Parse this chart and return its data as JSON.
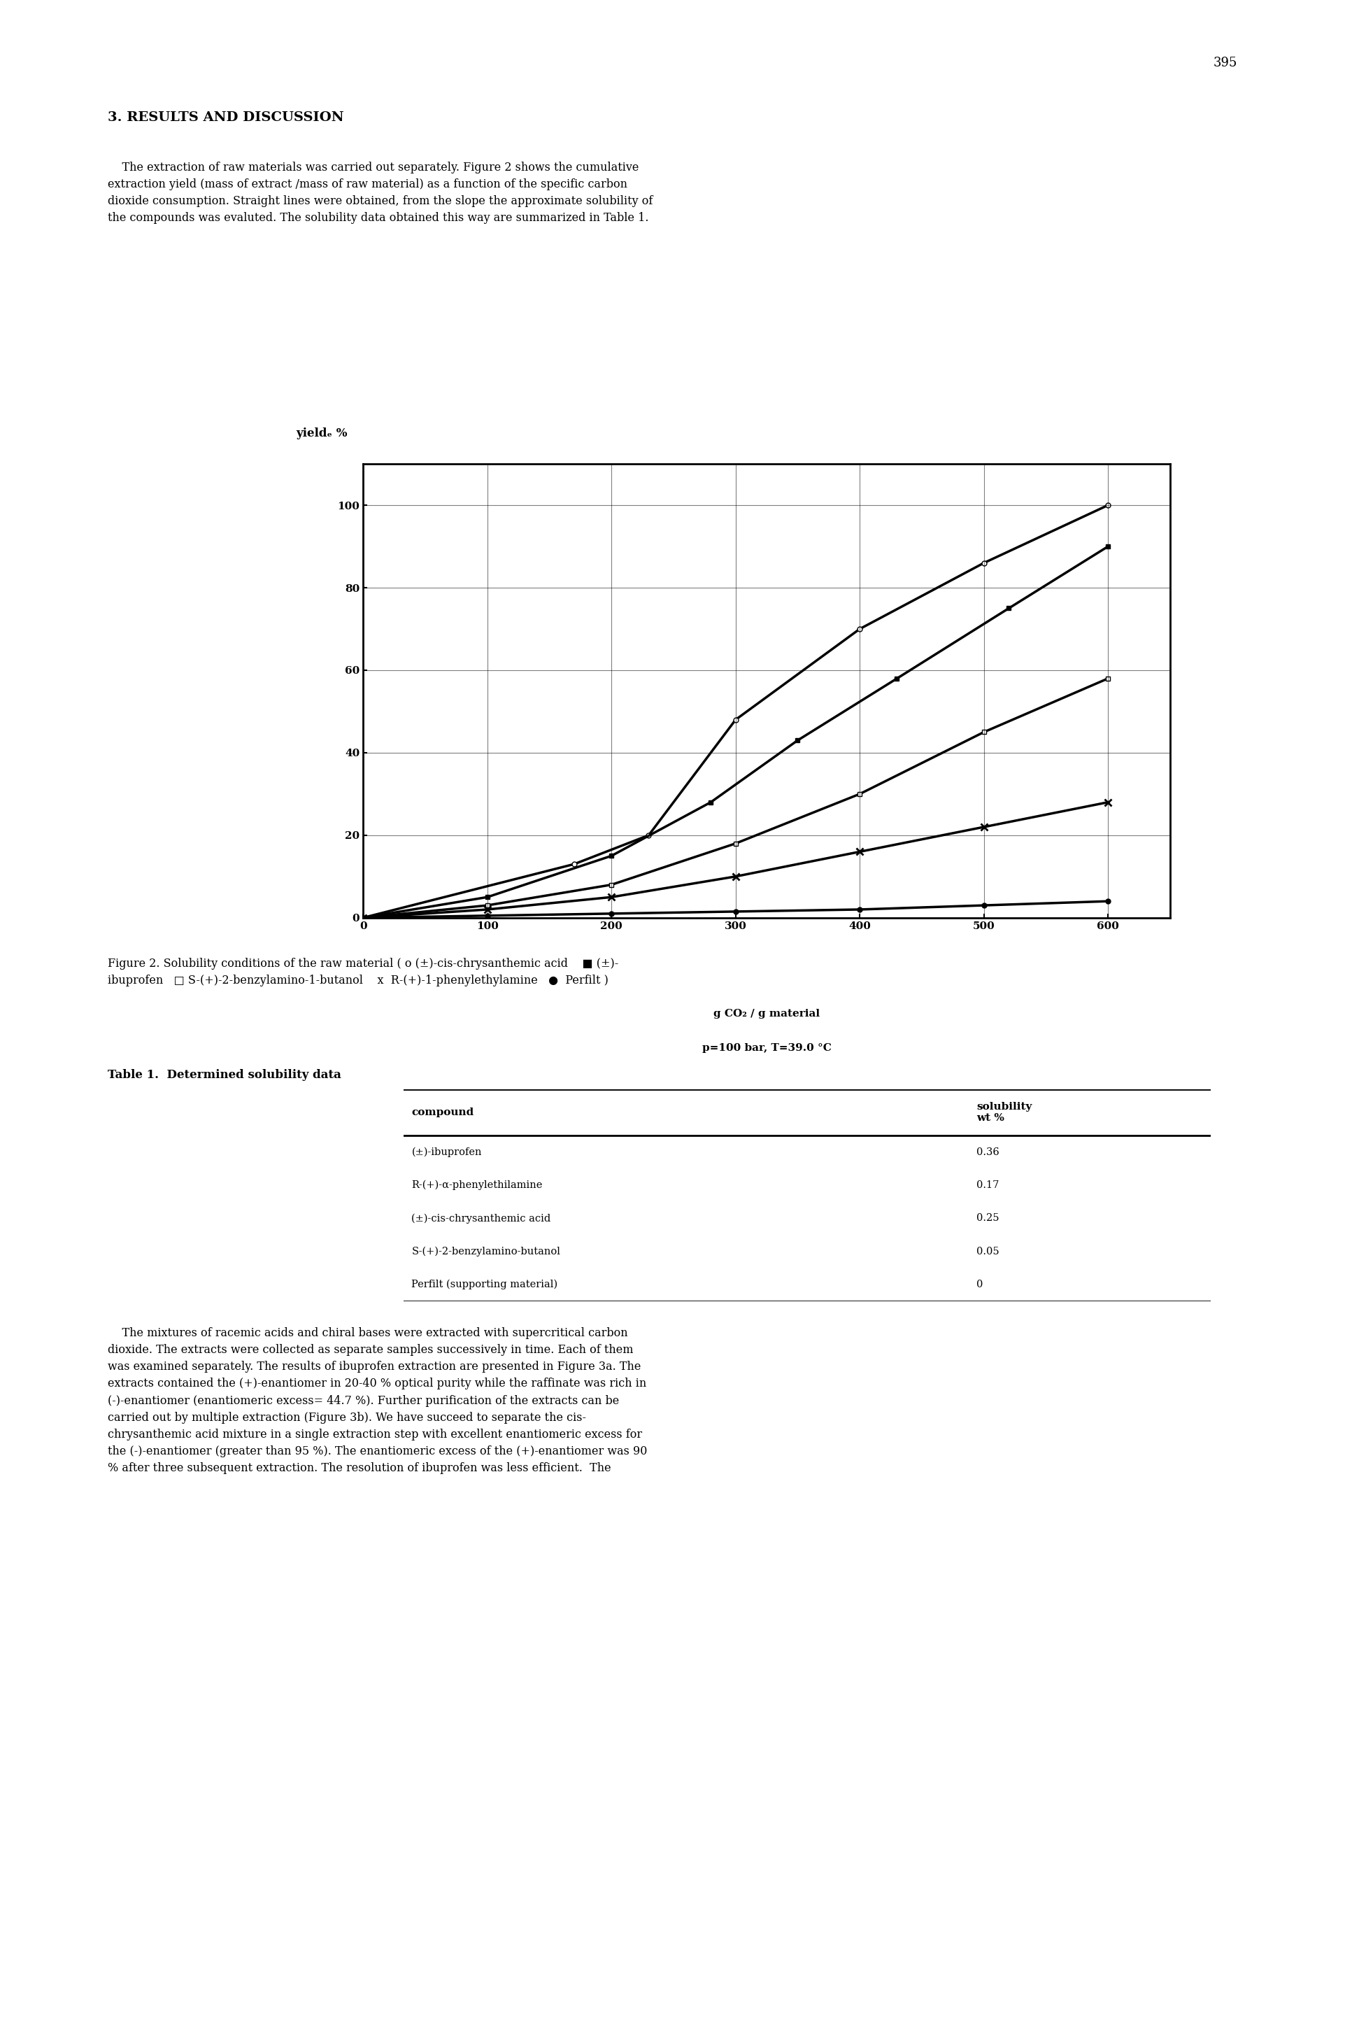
{
  "page_number": "395",
  "section_heading": "3. RESULTS AND DISCUSSION",
  "paragraph1": "    The extraction of raw materials was carried out separately. Figure 2 shows the cumulative\nextraction yield (mass of extract /mass of raw material) as a function of the specific carbon\ndioxide consumption. Straight lines were obtained, from the slope the approximate solubility of\nthe compounds was evaluted. The solubility data obtained this way are summarized in Table 1.",
  "ylabel": "yieldₑ %",
  "xlabel_line1": "g CO₂ / g material",
  "xlabel_line2": "p=100 bar, T=39.0 °C",
  "yticks": [
    0,
    20,
    40,
    60,
    80,
    100
  ],
  "xticks": [
    0,
    100,
    200,
    300,
    400,
    500,
    600
  ],
  "xlim": [
    0,
    650
  ],
  "ylim": [
    0,
    110
  ],
  "series": [
    {
      "label": "(±)-cis-chrysanthemic acid",
      "marker": "o",
      "x": [
        0,
        170,
        230,
        300,
        400,
        500,
        600
      ],
      "y": [
        0,
        13,
        20,
        48,
        70,
        86,
        100
      ],
      "linewidth": 2.5
    },
    {
      "label": "(±)-ibuprofen",
      "marker": "s",
      "x": [
        0,
        100,
        200,
        280,
        350,
        430,
        520,
        600
      ],
      "y": [
        0,
        5,
        15,
        28,
        43,
        58,
        75,
        90
      ],
      "linewidth": 2.5
    },
    {
      "label": "S-(+)-2-benzylamino-1-butanol",
      "marker": "D",
      "x": [
        0,
        100,
        200,
        300,
        400,
        500,
        600
      ],
      "y": [
        0,
        3,
        8,
        18,
        30,
        45,
        58
      ],
      "linewidth": 2.5
    },
    {
      "label": "R-(+)-1-phenylethylamine",
      "marker": "x",
      "x": [
        0,
        100,
        200,
        300,
        400,
        500,
        600
      ],
      "y": [
        0,
        2,
        5,
        10,
        16,
        22,
        28
      ],
      "linewidth": 2.5
    },
    {
      "label": "Perfilt",
      "marker": ".",
      "x": [
        0,
        100,
        200,
        300,
        400,
        500,
        600
      ],
      "y": [
        0,
        0.5,
        1,
        1.5,
        2,
        3,
        4
      ],
      "linewidth": 2.5
    }
  ],
  "figure_caption": "Figure 2. Solubility conditions of the raw material ( o (±)-cis-chrysanthemic acid    ■ (±)-\nibuprofen   □ S-(+)-2-benzylamino-1-butanol    x  R-(+)-1-phenylethylamine   ●  Perfilt )",
  "table_title": "Table 1.  Determined solubility data",
  "table_headers": [
    "compound",
    "solubility\nwt %"
  ],
  "table_rows": [
    [
      "(±)-ibuprofen",
      "0.36"
    ],
    [
      "R-(+)-α-phenylethilamine",
      "0.17"
    ],
    [
      "(±)-cis-chrysanthemic acid",
      "0.25"
    ],
    [
      "S-(+)-2-benzylamino-butanol",
      "0.05"
    ],
    [
      "Perfilt (supporting material)",
      "0"
    ]
  ],
  "paragraph2": "    The mixtures of racemic acids and chiral bases were extracted with supercritical carbon\ndioxide. The extracts were collected as separate samples successively in time. Each of them\nwas examined separately. The results of ibuprofen extraction are presented in Figure 3a. The\nextracts contained the (+)-enantiomer in 20-40 % optical purity while the raffinate was rich in\n(-)-enantiomer (enantiomeric excess= 44.7 %). Further purification of the extracts can be\ncarried out by multiple extraction (Figure 3b). We have succeed to separate the cis-\nchrysanthemic acid mixture in a single extraction step with excellent enantiomeric excess for\nthe (-)-enantiomer (greater than 95 %). The enantiomeric excess of the (+)-enantiomer was 90\n% after three subsequent extraction. The resolution of ibuprofen was less efficient.  The",
  "bg_color": "#ffffff",
  "text_color": "#000000"
}
